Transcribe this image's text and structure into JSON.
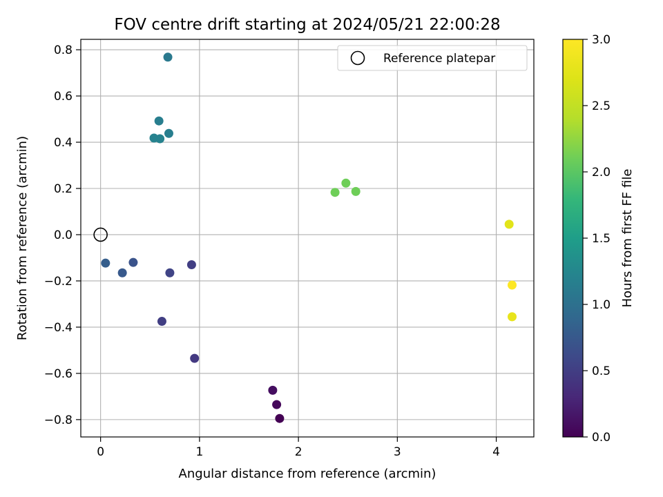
{
  "chart_data": {
    "type": "scatter",
    "title": "FOV centre drift starting at 2024/05/21 22:00:28",
    "xlabel": "Angular distance from reference (arcmin)",
    "ylabel": "Rotation from reference (arcmin)",
    "xlim": [
      -0.2,
      4.38
    ],
    "ylim": [
      -0.875,
      0.845
    ],
    "grid": true,
    "x_ticks": [
      0,
      1,
      2,
      3,
      4
    ],
    "x_tick_labels": [
      "0",
      "1",
      "2",
      "3",
      "4"
    ],
    "y_ticks": [
      -0.8,
      -0.6,
      -0.4,
      -0.2,
      0.0,
      0.2,
      0.4,
      0.6,
      0.8
    ],
    "y_tick_labels": [
      "−0.8",
      "−0.6",
      "−0.4",
      "−0.2",
      "0.0",
      "0.2",
      "0.4",
      "0.6",
      "0.8"
    ],
    "legend": {
      "placement": "upper-right",
      "entries": [
        "Reference platepar"
      ]
    },
    "reference": {
      "x": 0.0,
      "y": 0.0,
      "marker": "open-circle"
    },
    "colorbar": {
      "label": "Hours from first FF file",
      "range": [
        0.0,
        3.0
      ],
      "ticks": [
        0.0,
        0.5,
        1.0,
        1.5,
        2.0,
        2.5,
        3.0
      ],
      "tick_labels": [
        "0.0",
        "0.5",
        "1.0",
        "1.5",
        "2.0",
        "2.5",
        "3.0"
      ],
      "colormap": "viridis"
    },
    "points": [
      {
        "x": 1.81,
        "y": -0.795,
        "hours": 0.0
      },
      {
        "x": 1.78,
        "y": -0.735,
        "hours": 0.05
      },
      {
        "x": 1.74,
        "y": -0.673,
        "hours": 0.1
      },
      {
        "x": 0.95,
        "y": -0.535,
        "hours": 0.45
      },
      {
        "x": 0.62,
        "y": -0.375,
        "hours": 0.5
      },
      {
        "x": 0.7,
        "y": -0.165,
        "hours": 0.55
      },
      {
        "x": 0.92,
        "y": -0.13,
        "hours": 0.5
      },
      {
        "x": 0.33,
        "y": -0.12,
        "hours": 0.7
      },
      {
        "x": 0.22,
        "y": -0.165,
        "hours": 0.75
      },
      {
        "x": 0.05,
        "y": -0.123,
        "hours": 0.8
      },
      {
        "x": 0.68,
        "y": 0.768,
        "hours": 1.1
      },
      {
        "x": 0.59,
        "y": 0.492,
        "hours": 1.15
      },
      {
        "x": 0.69,
        "y": 0.438,
        "hours": 1.15
      },
      {
        "x": 0.54,
        "y": 0.418,
        "hours": 1.2
      },
      {
        "x": 0.6,
        "y": 0.415,
        "hours": 1.2
      },
      {
        "x": 2.37,
        "y": 0.183,
        "hours": 2.1
      },
      {
        "x": 2.48,
        "y": 0.223,
        "hours": 2.1
      },
      {
        "x": 2.58,
        "y": 0.187,
        "hours": 2.1
      },
      {
        "x": 4.13,
        "y": 0.045,
        "hours": 2.75
      },
      {
        "x": 4.16,
        "y": -0.218,
        "hours": 3.0
      },
      {
        "x": 4.16,
        "y": -0.355,
        "hours": 2.8
      }
    ]
  }
}
